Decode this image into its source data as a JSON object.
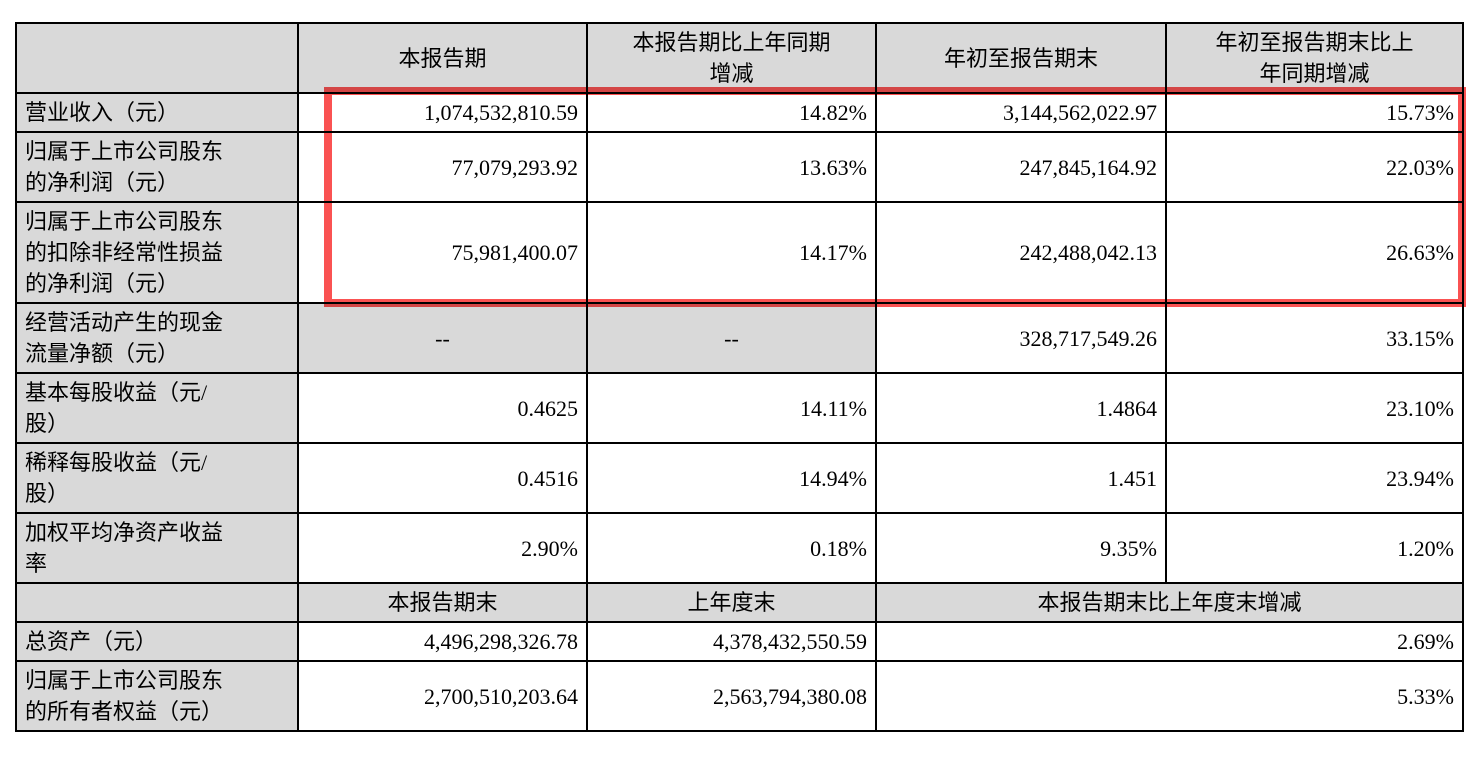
{
  "annotation": {
    "type": "highlight-box",
    "color": "#fa5252"
  },
  "colors": {
    "header_fill": "#d9d9d9",
    "border": "#000000",
    "background": "#ffffff"
  },
  "table": {
    "header": [
      "",
      "本报告期",
      "本报告期比上年同期\n增减",
      "年初至报告期末",
      "年初至报告期末比上\n年同期增减"
    ],
    "rows": [
      {
        "label": "营业收入（元）",
        "values": [
          "1,074,532,810.59",
          "14.82%",
          "3,144,562,022.97",
          "15.73%"
        ],
        "highlighted": true
      },
      {
        "label": "归属于上市公司股东\n的净利润（元）",
        "values": [
          "77,079,293.92",
          "13.63%",
          "247,845,164.92",
          "22.03%"
        ],
        "highlighted": true
      },
      {
        "label": "归属于上市公司股东\n的扣除非经常性损益\n的净利润（元）",
        "values": [
          "75,981,400.07",
          "14.17%",
          "242,488,042.13",
          "26.63%"
        ],
        "highlighted": true
      },
      {
        "label": "经营活动产生的现金\n流量净额（元）",
        "values": [
          "--",
          "--",
          "328,717,549.26",
          "33.15%"
        ],
        "highlighted": false
      },
      {
        "label": "基本每股收益（元/\n股）",
        "values": [
          "0.4625",
          "14.11%",
          "1.4864",
          "23.10%"
        ],
        "highlighted": false
      },
      {
        "label": "稀释每股收益（元/\n股）",
        "values": [
          "0.4516",
          "14.94%",
          "1.451",
          "23.94%"
        ],
        "highlighted": false
      },
      {
        "label": "加权平均净资产收益\n率",
        "values": [
          "2.90%",
          "0.18%",
          "9.35%",
          "1.20%"
        ],
        "highlighted": false
      }
    ],
    "period_end_header": [
      "",
      "本报告期末",
      "上年度末",
      "本报告期末比上年度末增减"
    ],
    "period_end_rows": [
      {
        "label": "总资产（元）",
        "values": [
          "4,496,298,326.78",
          "4,378,432,550.59",
          "2.69%"
        ]
      },
      {
        "label": "归属于上市公司股东\n的所有者权益（元）",
        "values": [
          "2,700,510,203.64",
          "2,563,794,380.08",
          "5.33%"
        ]
      }
    ]
  }
}
